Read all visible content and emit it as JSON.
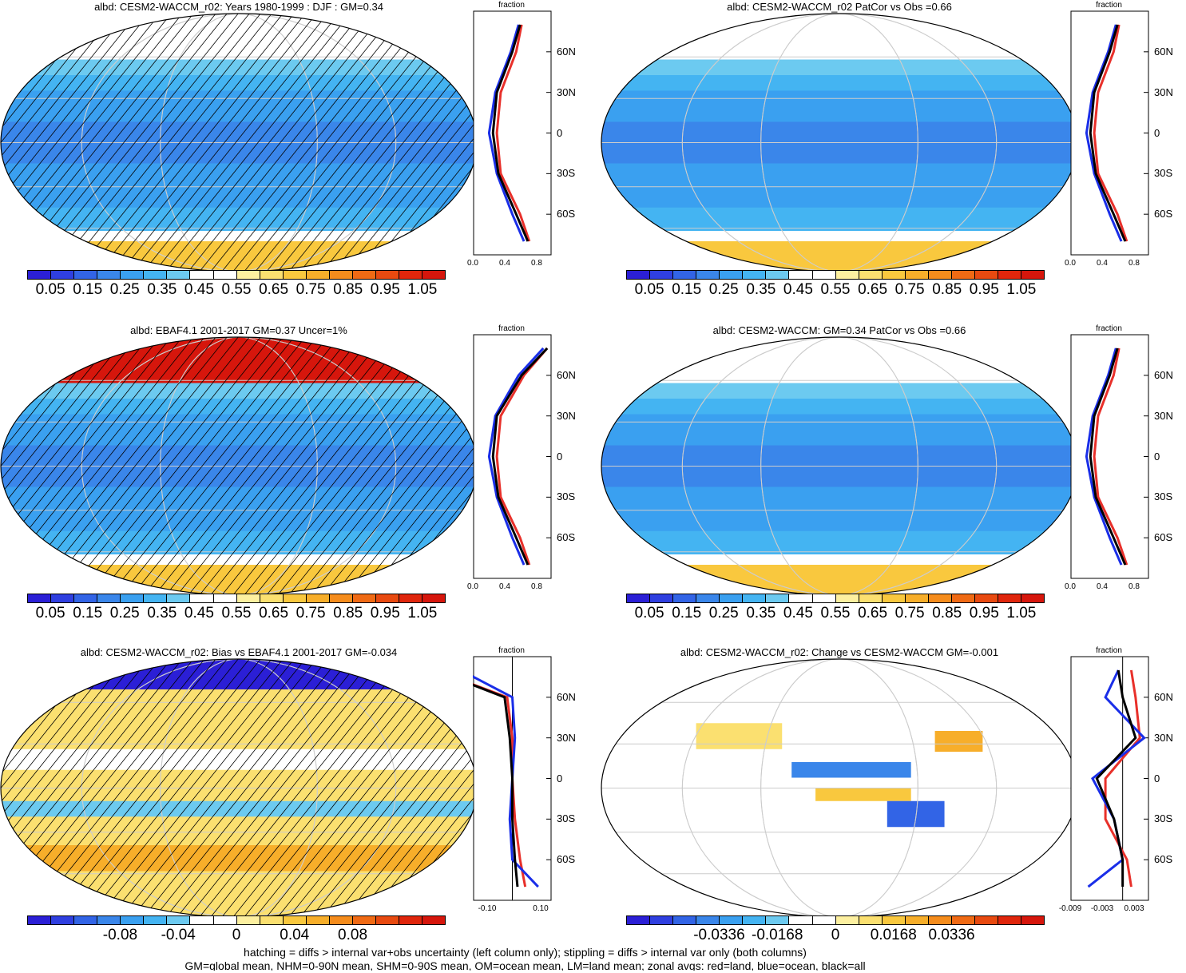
{
  "panels": [
    {
      "title": "albd: CESM2-WACCM_r02: Years 1980-1999 : DJF : GM=0.34",
      "colorbar": [
        "0.05",
        "0.15",
        "0.25",
        "0.35",
        "0.45",
        "0.55",
        "0.65",
        "0.75",
        "0.85",
        "0.95",
        "1.05"
      ],
      "zonal_xticks": [
        "0.0",
        "0.4",
        "0.8"
      ],
      "zonal_title": "fraction"
    },
    {
      "title": "albd: CESM2-WACCM_r02 PatCor vs Obs =0.66",
      "colorbar": [
        "0.05",
        "0.15",
        "0.25",
        "0.35",
        "0.45",
        "0.55",
        "0.65",
        "0.75",
        "0.85",
        "0.95",
        "1.05"
      ],
      "zonal_xticks": [
        "0.0",
        "0.4",
        "0.8"
      ],
      "zonal_title": "fraction"
    },
    {
      "title": "albd: EBAF4.1 2001-2017 GM=0.37 Uncer=1%",
      "colorbar": [
        "0.05",
        "0.15",
        "0.25",
        "0.35",
        "0.45",
        "0.55",
        "0.65",
        "0.75",
        "0.85",
        "0.95",
        "1.05"
      ],
      "zonal_xticks": [
        "0.0",
        "0.4",
        "0.8"
      ],
      "zonal_title": "fraction"
    },
    {
      "title": "albd: CESM2-WACCM: GM=0.34 PatCor vs Obs =0.66",
      "colorbar": [
        "0.05",
        "0.15",
        "0.25",
        "0.35",
        "0.45",
        "0.55",
        "0.65",
        "0.75",
        "0.85",
        "0.95",
        "1.05"
      ],
      "zonal_xticks": [
        "0.0",
        "0.4",
        "0.8"
      ],
      "zonal_title": "fraction"
    },
    {
      "title": "albd: CESM2-WACCM_r02: Bias vs EBAF4.1 2001-2017 GM=-0.034",
      "colorbar": [
        "-0.08",
        "-0.04",
        "0",
        "0.04",
        "0.08"
      ],
      "zonal_xticks": [
        "-0.10",
        "0.10"
      ],
      "zonal_title": "fraction"
    },
    {
      "title": "albd: CESM2-WACCM_r02: Change vs CESM2-WACCM GM=-0.001",
      "colorbar": [
        "-0.0336",
        "-0.0168",
        "0",
        "0.0168",
        "0.0336"
      ],
      "zonal_xticks": [
        "-0.009",
        "-0.003",
        "0.003"
      ],
      "zonal_title": "fraction"
    }
  ],
  "lat_labels": [
    "60N",
    "30N",
    "0",
    "30S",
    "60S"
  ],
  "colors": {
    "abs_scale": [
      "#2b1fd6",
      "#2f3fe0",
      "#3264e6",
      "#3a86ea",
      "#3aa0f0",
      "#44b4f2",
      "#6ccaf0",
      "#ffffff",
      "#ffffff",
      "#fdf0a0",
      "#fbe070",
      "#f9c83e",
      "#f7ae2a",
      "#f58c1c",
      "#f06a14",
      "#e84a10",
      "#e0260c",
      "#d6160c"
    ],
    "diff_scale": [
      "#2b1fd6",
      "#2f3fe0",
      "#3264e6",
      "#3a86ea",
      "#3aa0f0",
      "#44b4f2",
      "#6ccaf0",
      "#ffffff",
      "#ffffff",
      "#fdf0a0",
      "#fbe070",
      "#f9c83e",
      "#f7ae2a",
      "#f58c1c",
      "#f06a14",
      "#e84a10",
      "#e0260c",
      "#d6160c"
    ],
    "land": "#e8302a",
    "ocean": "#1a2ee8",
    "all": "#000000"
  },
  "chart_data": [
    {
      "type": "heatmap",
      "title": "albd: CESM2-WACCM_r02: Years 1980-1999 : DJF : GM=0.34",
      "colorbar_ticks": [
        0.05,
        0.15,
        0.25,
        0.35,
        0.45,
        0.55,
        0.65,
        0.75,
        0.85,
        0.95,
        1.05
      ],
      "zonal": {
        "xlim": [
          0,
          1.0
        ],
        "lat": [
          -80,
          -60,
          -30,
          0,
          30,
          60,
          80
        ],
        "all": [
          0.7,
          0.55,
          0.32,
          0.25,
          0.3,
          0.5,
          0.6
        ],
        "land": [
          0.72,
          0.6,
          0.35,
          0.3,
          0.35,
          0.55,
          0.62
        ],
        "ocean": [
          0.65,
          0.5,
          0.3,
          0.2,
          0.28,
          0.48,
          0.58
        ]
      }
    },
    {
      "type": "heatmap",
      "title": "albd: CESM2-WACCM_r02 PatCor vs Obs =0.66",
      "colorbar_ticks": [
        0.05,
        0.15,
        0.25,
        0.35,
        0.45,
        0.55,
        0.65,
        0.75,
        0.85,
        0.95,
        1.05
      ],
      "zonal": {
        "xlim": [
          0,
          1.0
        ],
        "lat": [
          -80,
          -60,
          -30,
          0,
          30,
          60,
          80
        ],
        "all": [
          0.7,
          0.55,
          0.32,
          0.25,
          0.3,
          0.5,
          0.6
        ],
        "land": [
          0.72,
          0.6,
          0.35,
          0.3,
          0.35,
          0.55,
          0.62
        ],
        "ocean": [
          0.65,
          0.5,
          0.3,
          0.2,
          0.28,
          0.48,
          0.58
        ]
      }
    },
    {
      "type": "heatmap",
      "title": "albd: EBAF4.1 2001-2017 GM=0.37 Uncer=1%",
      "colorbar_ticks": [
        0.05,
        0.15,
        0.25,
        0.35,
        0.45,
        0.55,
        0.65,
        0.75,
        0.85,
        0.95,
        1.05
      ],
      "zonal": {
        "xlim": [
          0,
          1.0
        ],
        "lat": [
          -80,
          -60,
          -30,
          0,
          30,
          60,
          80
        ],
        "all": [
          0.7,
          0.55,
          0.32,
          0.25,
          0.3,
          0.62,
          0.95
        ],
        "land": [
          0.72,
          0.6,
          0.35,
          0.3,
          0.35,
          0.65,
          0.95
        ],
        "ocean": [
          0.65,
          0.5,
          0.3,
          0.2,
          0.28,
          0.58,
          0.9
        ]
      }
    },
    {
      "type": "heatmap",
      "title": "albd: CESM2-WACCM: GM=0.34 PatCor vs Obs =0.66",
      "colorbar_ticks": [
        0.05,
        0.15,
        0.25,
        0.35,
        0.45,
        0.55,
        0.65,
        0.75,
        0.85,
        0.95,
        1.05
      ],
      "zonal": {
        "xlim": [
          0,
          1.0
        ],
        "lat": [
          -80,
          -60,
          -30,
          0,
          30,
          60,
          80
        ],
        "all": [
          0.7,
          0.55,
          0.32,
          0.25,
          0.3,
          0.5,
          0.6
        ],
        "land": [
          0.72,
          0.6,
          0.35,
          0.3,
          0.35,
          0.55,
          0.62
        ],
        "ocean": [
          0.65,
          0.5,
          0.3,
          0.2,
          0.28,
          0.48,
          0.58
        ]
      }
    },
    {
      "type": "heatmap",
      "title": "albd: CESM2-WACCM_r02: Bias vs EBAF4.1 2001-2017 GM=-0.034",
      "colorbar_ticks": [
        -0.08,
        -0.04,
        0,
        0.04,
        0.08
      ],
      "zonal": {
        "xlim": [
          -0.15,
          0.15
        ],
        "lat": [
          -80,
          -60,
          -30,
          0,
          30,
          60,
          80
        ],
        "all": [
          0.02,
          0.01,
          0.0,
          0.0,
          -0.01,
          -0.03,
          -0.3
        ],
        "land": [
          0.05,
          0.03,
          0.01,
          0.0,
          0.0,
          -0.02,
          -0.3
        ],
        "ocean": [
          0.1,
          0.0,
          -0.01,
          0.0,
          0.01,
          0.0,
          -0.2
        ]
      }
    },
    {
      "type": "heatmap",
      "title": "albd: CESM2-WACCM_r02: Change vs CESM2-WACCM GM=-0.001",
      "colorbar_ticks": [
        -0.0336,
        -0.0168,
        0,
        0.0168,
        0.0336
      ],
      "zonal": {
        "xlim": [
          -0.012,
          0.006
        ],
        "lat": [
          -80,
          -60,
          -30,
          0,
          30,
          60,
          80
        ],
        "all": [
          0.0,
          0.0,
          -0.002,
          -0.006,
          0.003,
          0.0,
          -0.001
        ],
        "land": [
          0.002,
          0.001,
          -0.004,
          -0.004,
          0.004,
          0.003,
          0.002
        ],
        "ocean": [
          -0.008,
          0.0,
          -0.002,
          -0.007,
          0.005,
          -0.004,
          -0.001
        ]
      }
    }
  ],
  "footer": {
    "line1": "hatching = diffs > internal var+obs uncertainty (left column only); stippling = diffs > internal var only (both columns)",
    "line2": "GM=global mean, NHM=0-90N mean, SHM=0-90S mean, OM=ocean mean, LM=land mean; zonal avgs: red=land, blue=ocean, black=all"
  }
}
